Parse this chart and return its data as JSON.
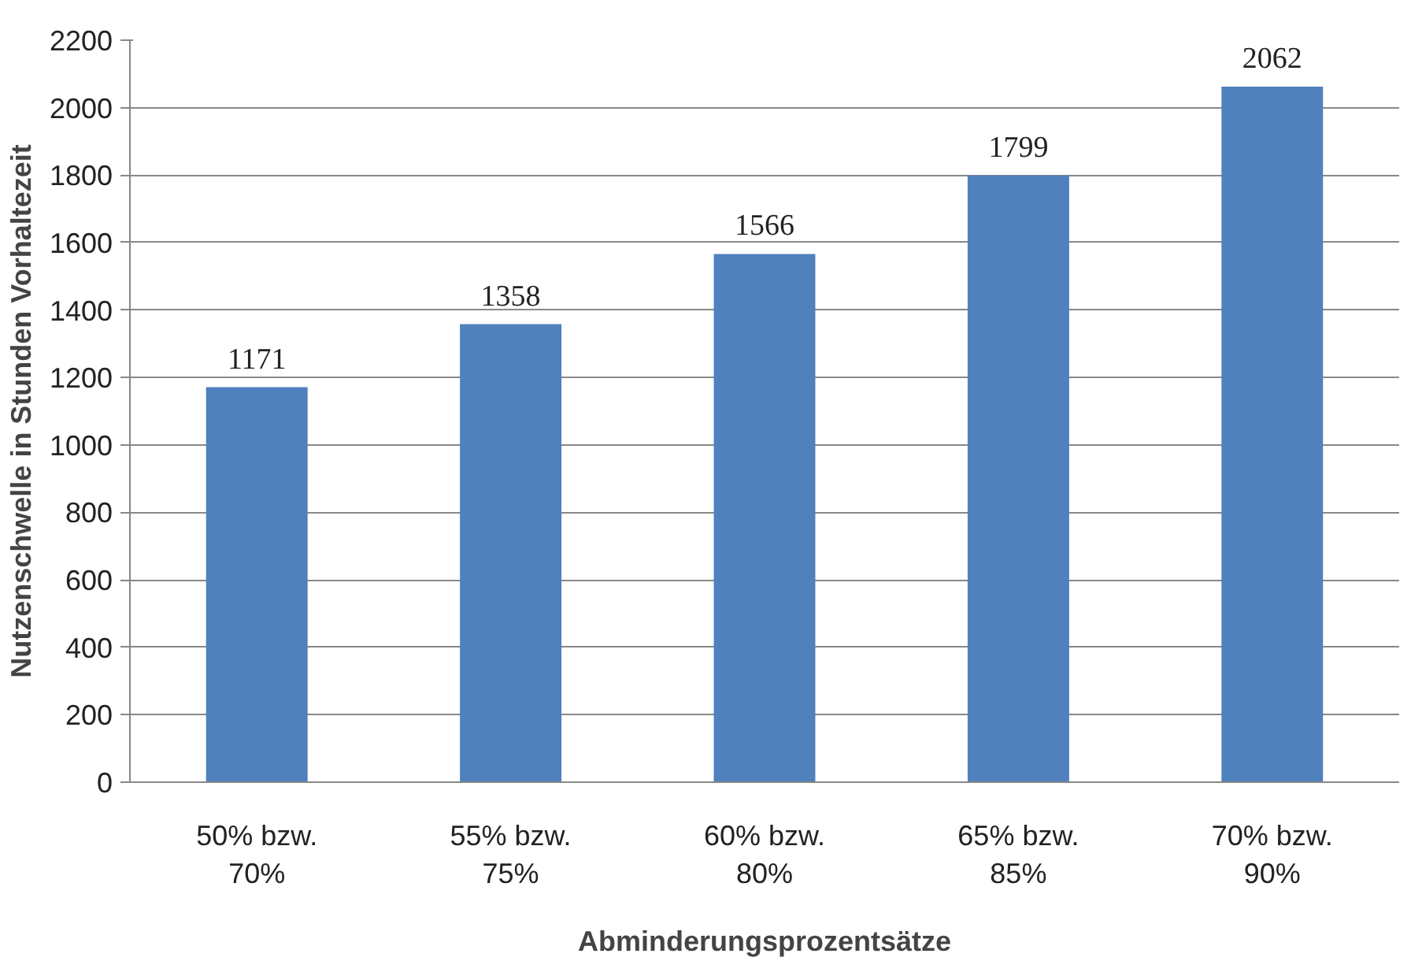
{
  "chart_data": {
    "type": "bar",
    "xlabel": "Abminderungsprozentsätze",
    "ylabel": "Nutzenschwelle in Stunden Vorhaltezeit",
    "categories": [
      "50% bzw.\n70%",
      "55% bzw.\n75%",
      "60% bzw.\n80%",
      "65% bzw.\n85%",
      "70% bzw.\n90%"
    ],
    "values": [
      1171,
      1358,
      1566,
      1799,
      2062
    ],
    "color": "#4f81bd",
    "ylim": [
      0,
      2200
    ],
    "yticks": [
      0,
      200,
      400,
      600,
      800,
      1000,
      1200,
      1400,
      1600,
      1800,
      2000,
      2200
    ],
    "grid": "y",
    "data_labels": true
  }
}
